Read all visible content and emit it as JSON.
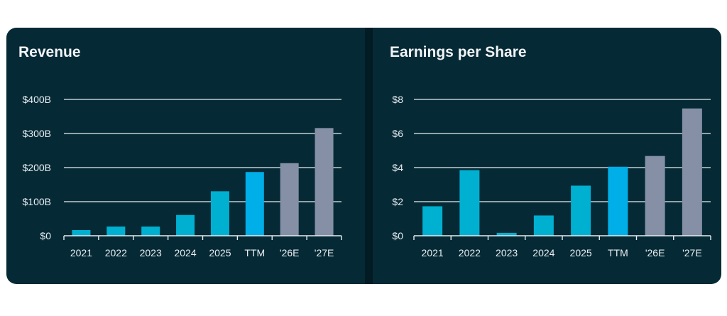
{
  "colors": {
    "background": "#052a36",
    "actual": "#00b0d0",
    "ttm": "#00aee8",
    "estimate": "#8590a6",
    "gridline": "#e6ecef",
    "text": "#f2f4f7"
  },
  "chart_data": [
    {
      "type": "bar",
      "title": "Revenue",
      "xlabel": "",
      "ylabel": "",
      "categories": [
        "2021",
        "2022",
        "2023",
        "2024",
        "2025",
        "TTM",
        "'26E",
        "'27E"
      ],
      "values": [
        16.7,
        27.0,
        27.0,
        60.9,
        130.5,
        187.0,
        213.0,
        316.0
      ],
      "bar_kinds": [
        "actual",
        "actual",
        "actual",
        "actual",
        "actual",
        "ttm",
        "estimate",
        "estimate"
      ],
      "ylim": [
        0,
        400
      ],
      "yticks": [
        0,
        100,
        200,
        300,
        400
      ],
      "ytick_labels": [
        "$0",
        "$100B",
        "$200B",
        "$300B",
        "$400B"
      ],
      "grid": true,
      "legend": "none"
    },
    {
      "type": "bar",
      "title": "Earnings per Share",
      "xlabel": "",
      "ylabel": "",
      "categories": [
        "2021",
        "2022",
        "2023",
        "2024",
        "2025",
        "TTM",
        "'26E",
        "'27E"
      ],
      "values": [
        1.73,
        3.85,
        0.17,
        1.19,
        2.94,
        4.05,
        4.68,
        7.47
      ],
      "bar_kinds": [
        "actual",
        "actual",
        "actual",
        "actual",
        "actual",
        "ttm",
        "estimate",
        "estimate"
      ],
      "ylim": [
        0,
        8
      ],
      "yticks": [
        0,
        2,
        4,
        6,
        8
      ],
      "ytick_labels": [
        "$0",
        "$2",
        "$4",
        "$6",
        "$8"
      ],
      "grid": true,
      "legend": "none"
    }
  ]
}
